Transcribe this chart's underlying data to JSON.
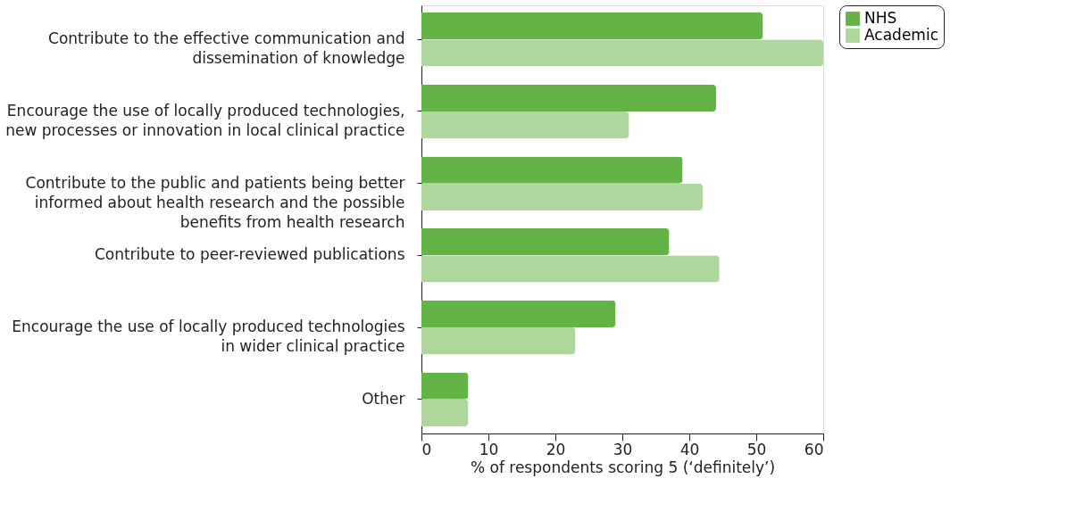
{
  "chart_data": {
    "type": "bar",
    "orientation": "horizontal",
    "xlabel": "% of respondents scoring 5 (‘definitely’)",
    "categories": [
      "Contribute to the effective communication and\ndissemination of knowledge",
      "Encourage the use of locally produced technologies,\nnew processes or innovation in local clinical practice",
      "Contribute to the public and patients being better\ninformed about health research and the possible\nbenefits from health research",
      "Contribute to peer-reviewed publications",
      "Encourage the use of locally produced technologies\nin wider clinical practice",
      "Other"
    ],
    "series": [
      {
        "name": "NHS",
        "color": "#63b346",
        "values": [
          51,
          44,
          39,
          37,
          29,
          7
        ]
      },
      {
        "name": "Academic",
        "color": "#aed69d",
        "values": [
          60,
          31,
          42,
          44.5,
          23,
          7
        ]
      }
    ],
    "xlim": [
      0,
      60
    ],
    "xticks": [
      0,
      10,
      20,
      30,
      40,
      50,
      60
    ],
    "grid": false,
    "legend": "right"
  }
}
